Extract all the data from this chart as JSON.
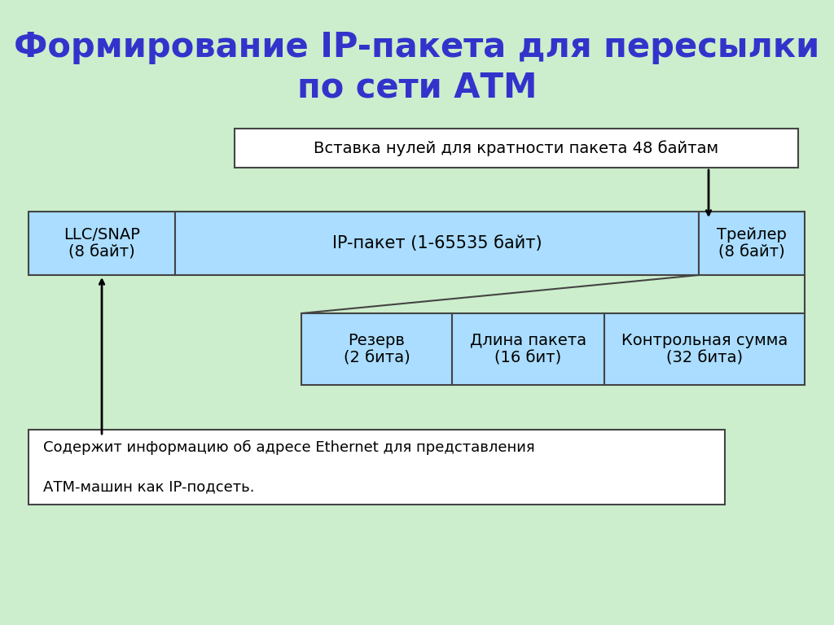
{
  "title_line1": "Формирование IP-пакета для пересылки",
  "title_line2": "по сети АТМ",
  "title_color": "#3333CC",
  "bg_color": "#CCEECC",
  "box_fill_color": "#AADDFF",
  "box_edge_color": "#444444",
  "text_color": "#000000",
  "white_box_fill": "#FFFFFF",
  "annotation_box_text": "Вставка нулей для кратности пакета 48 байтам",
  "llc_snap_text": "LLC/SNAP\n(8 байт)",
  "ip_packet_text": "IP-пакет (1-65535 байт)",
  "trailer_text": "Трейлер\n(8 байт)",
  "reserve_text": "Резерв\n(2 бита)",
  "length_text": "Длина пакета\n(16 бит)",
  "checksum_text": "Контрольная сумма\n(32 бита)",
  "bottom_note_line1": "Содержит информацию об адресе Ethernet для представления",
  "bottom_note_line2": "АТМ-машин как IP-подсеть."
}
